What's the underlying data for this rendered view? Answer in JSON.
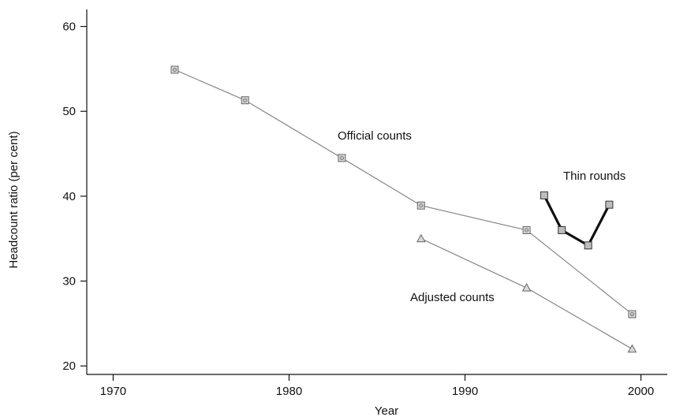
{
  "chart_data": {
    "type": "line",
    "xlabel": "Year",
    "ylabel": "Headcount ratio (per cent)",
    "xlim": [
      1968.5,
      2001.5
    ],
    "ylim": [
      19,
      62
    ],
    "xticks": [
      1970,
      1980,
      1990,
      2000
    ],
    "yticks": [
      20,
      30,
      40,
      50,
      60
    ],
    "grid": false,
    "series": [
      {
        "name": "Official counts",
        "marker": "circle-square",
        "color": "#888888",
        "x": [
          1973.5,
          1977.5,
          1983,
          1987.5,
          1993.5,
          1999.5
        ],
        "y": [
          54.9,
          51.3,
          44.5,
          38.9,
          36.0,
          26.1
        ]
      },
      {
        "name": "Adjusted counts",
        "marker": "triangle",
        "color": "#888888",
        "x": [
          1987.5,
          1993.5,
          1999.5
        ],
        "y": [
          35.0,
          29.2,
          22.0
        ]
      },
      {
        "name": "Thin rounds",
        "marker": "square",
        "color": "#111111",
        "x": [
          1994.5,
          1995.5,
          1997,
          1998.2
        ],
        "y": [
          40.1,
          36.0,
          34.2,
          39.0
        ]
      }
    ]
  }
}
